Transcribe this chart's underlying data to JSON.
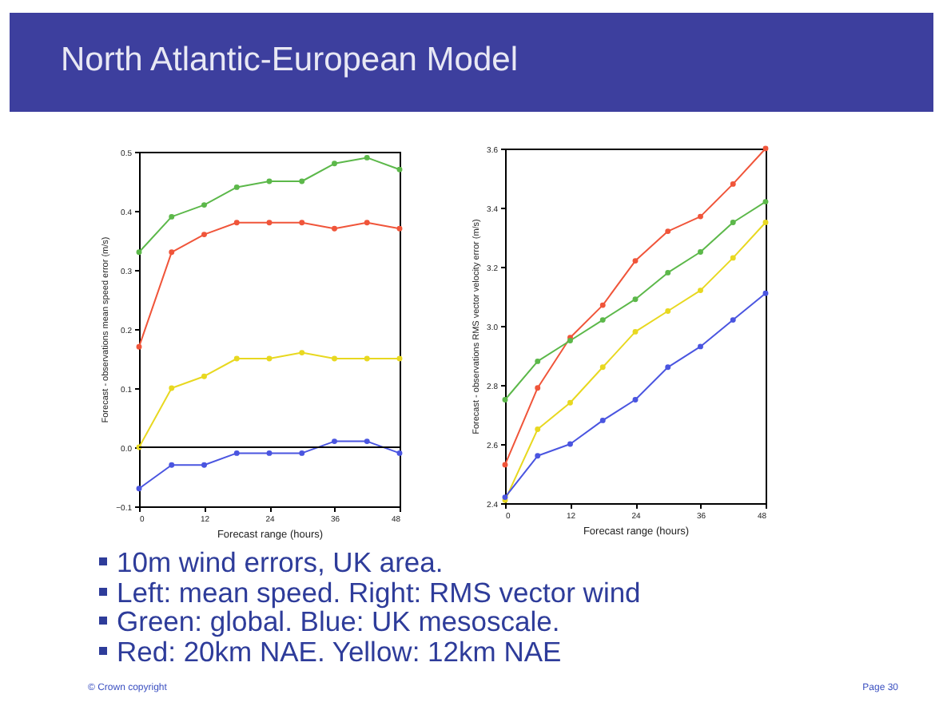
{
  "chart_data": [
    {
      "type": "line",
      "title": "North Atlantic-European Model",
      "xlabel": "Forecast range (hours)",
      "ylabel": "Forecast - observations mean speed error (m/s)",
      "x": [
        0,
        6,
        12,
        18,
        24,
        30,
        36,
        42,
        48
      ],
      "xlim": [
        0,
        48
      ],
      "xticks": [
        0,
        12,
        24,
        36,
        48
      ],
      "ylim": [
        -0.1,
        0.5
      ],
      "yticks": [
        -0.1,
        {
          "value": 0,
          "label": "0.0"
        },
        0.1,
        0.2,
        0.3,
        0.4,
        0.5
      ],
      "marker": "circle",
      "grid": false,
      "legend": false,
      "ref_lines": [
        {
          "axis": "y",
          "value": 0,
          "color": "#000000"
        }
      ],
      "series": [
        {
          "color": "#5cb84a",
          "values": [
            0.33,
            0.39,
            0.41,
            0.44,
            0.45,
            0.45,
            0.48,
            0.49,
            0.47
          ]
        },
        {
          "color": "#f0553a",
          "values": [
            0.17,
            0.33,
            0.36,
            0.38,
            0.38,
            0.38,
            0.37,
            0.38,
            0.37
          ]
        },
        {
          "color": "#e8d820",
          "values": [
            0.0,
            0.1,
            0.12,
            0.15,
            0.15,
            0.16,
            0.15,
            0.15,
            0.15
          ]
        },
        {
          "color": "#4a55e0",
          "values": [
            -0.07,
            -0.03,
            -0.03,
            -0.01,
            -0.01,
            -0.01,
            0.01,
            0.01,
            -0.01
          ]
        }
      ],
      "annotations": [
        "10m wind errors, UK area.",
        "Left: mean speed. Right: RMS vector wind",
        "Green: global. Blue: UK mesoscale.",
        "Red: 20km NAE. Yellow: 12km NAE",
        "© Crown copyright",
        "Page 30"
      ]
    },
    {
      "type": "line",
      "xlabel": "Forecast range (hours)",
      "ylabel": "Forecast - observations RMS vector velocity error (m/s)",
      "x": [
        0,
        6,
        12,
        18,
        24,
        30,
        36,
        42,
        48
      ],
      "xlim": [
        0,
        48
      ],
      "xticks": [
        0,
        12,
        24,
        36,
        48
      ],
      "ylim": [
        2.4,
        3.6
      ],
      "yticks": [
        2.4,
        2.6,
        2.8,
        {
          "value": 3,
          "label": "3.0"
        },
        3.2,
        3.4,
        3.6
      ],
      "marker": "circle",
      "grid": false,
      "legend": false,
      "series": [
        {
          "color": "#f0553a",
          "values": [
            2.53,
            2.79,
            2.96,
            3.07,
            3.22,
            3.32,
            3.37,
            3.48,
            3.6
          ]
        },
        {
          "color": "#5cb84a",
          "values": [
            2.75,
            2.88,
            2.95,
            3.02,
            3.09,
            3.18,
            3.25,
            3.35,
            3.42
          ]
        },
        {
          "color": "#e8d820",
          "values": [
            2.41,
            2.65,
            2.74,
            2.86,
            2.98,
            3.05,
            3.12,
            3.23,
            3.35
          ]
        },
        {
          "color": "#4a55e0",
          "values": [
            2.42,
            2.56,
            2.6,
            2.68,
            2.75,
            2.86,
            2.93,
            3.02,
            3.11
          ]
        }
      ]
    }
  ]
}
